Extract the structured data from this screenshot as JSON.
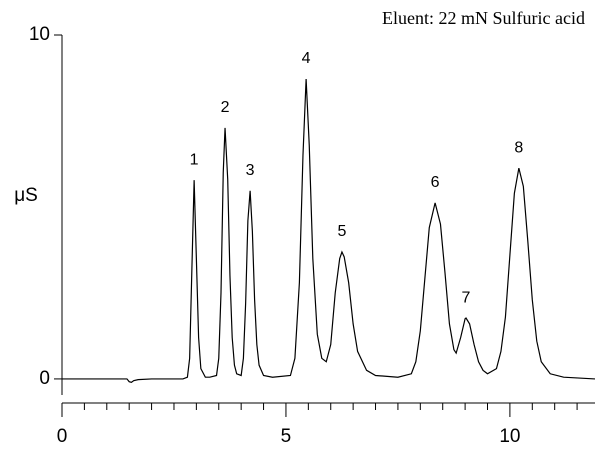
{
  "chart_data": {
    "type": "line",
    "annotation": "Eluent: 22 mN Sulfuric acid",
    "ylabel": "μS",
    "xlim": [
      0,
      11.9
    ],
    "ylim": [
      -0.7,
      10
    ],
    "xticks": [
      0,
      5,
      10
    ],
    "xminorticks": [
      0.5,
      1,
      1.5,
      2,
      2.5,
      3,
      3.5,
      4,
      4.5,
      5.5,
      6,
      6.5,
      7,
      7.5,
      8,
      8.5,
      9,
      9.5,
      10.5,
      11,
      11.5
    ],
    "yticks": [
      0,
      10
    ],
    "color": "#000000",
    "x": [
      0,
      1.45,
      1.5,
      1.55,
      1.6,
      1.7,
      2.0,
      2.7,
      2.8,
      2.85,
      2.9,
      2.95,
      3.0,
      3.05,
      3.1,
      3.2,
      3.3,
      3.45,
      3.5,
      3.55,
      3.6,
      3.64,
      3.7,
      3.75,
      3.8,
      3.85,
      3.9,
      4.0,
      4.05,
      4.1,
      4.15,
      4.2,
      4.25,
      4.3,
      4.35,
      4.4,
      4.5,
      4.7,
      5.1,
      5.2,
      5.3,
      5.38,
      5.45,
      5.52,
      5.6,
      5.7,
      5.8,
      5.9,
      6.0,
      6.1,
      6.2,
      6.25,
      6.3,
      6.4,
      6.5,
      6.6,
      6.8,
      7.0,
      7.5,
      7.8,
      7.9,
      8.0,
      8.1,
      8.2,
      8.33,
      8.45,
      8.55,
      8.65,
      8.75,
      8.8,
      8.9,
      9.0,
      9.02,
      9.1,
      9.2,
      9.3,
      9.4,
      9.5,
      9.7,
      9.8,
      9.9,
      10.0,
      10.1,
      10.2,
      10.3,
      10.4,
      10.5,
      10.6,
      10.7,
      10.9,
      11.2,
      11.9
    ],
    "y": [
      0,
      0,
      -0.08,
      -0.1,
      -0.05,
      -0.02,
      0,
      0,
      0.05,
      0.6,
      3.2,
      5.78,
      3.5,
      1.2,
      0.3,
      0.05,
      0.05,
      0.1,
      0.6,
      2.5,
      6.0,
      7.3,
      5.8,
      3.0,
      1.2,
      0.4,
      0.15,
      0.1,
      0.6,
      2.2,
      4.6,
      5.47,
      4.3,
      2.3,
      1.0,
      0.4,
      0.1,
      0.05,
      0.1,
      0.6,
      2.8,
      6.5,
      8.72,
      6.8,
      3.5,
      1.3,
      0.6,
      0.5,
      1.0,
      2.5,
      3.5,
      3.69,
      3.55,
      2.8,
      1.6,
      0.8,
      0.25,
      0.1,
      0.05,
      0.15,
      0.5,
      1.4,
      2.9,
      4.4,
      5.12,
      4.5,
      3.1,
      1.6,
      0.85,
      0.75,
      1.2,
      1.75,
      1.77,
      1.6,
      1.0,
      0.5,
      0.25,
      0.15,
      0.3,
      0.8,
      1.8,
      3.6,
      5.4,
      6.13,
      5.6,
      4.0,
      2.3,
      1.1,
      0.5,
      0.15,
      0.05,
      0
    ],
    "peaks": [
      {
        "label": "1",
        "x": 2.95,
        "y": 5.78
      },
      {
        "label": "2",
        "x": 3.64,
        "y": 7.3
      },
      {
        "label": "3",
        "x": 4.2,
        "y": 5.47
      },
      {
        "label": "4",
        "x": 5.45,
        "y": 8.72
      },
      {
        "label": "5",
        "x": 6.25,
        "y": 3.69
      },
      {
        "label": "6",
        "x": 8.33,
        "y": 5.12
      },
      {
        "label": "7",
        "x": 9.02,
        "y": 1.77
      },
      {
        "label": "8",
        "x": 10.2,
        "y": 6.13
      }
    ]
  }
}
